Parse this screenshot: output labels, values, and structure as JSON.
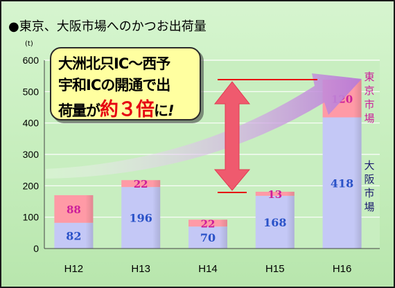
{
  "title": "●東京、大阪市場へのかつお出荷量",
  "unit": "(t)",
  "callout": {
    "line1": "大洲北只IC～西予",
    "line2": "宇和ICの開通で出",
    "line3_a": "荷量が",
    "line3_b": "約３倍",
    "line3_c": "に",
    "line3_d": "!"
  },
  "legend_labels": {
    "tokyo": "東京市場",
    "osaka": "大阪市場"
  },
  "colors": {
    "tokyo_fill": "#ff9aa6",
    "osaka_fill": "#c4c8f6",
    "tokyo_label": "#cc1f9a",
    "osaka_label": "#2a52c8",
    "accent_red": "#e60012",
    "arrow_purple": "#b87ad6"
  },
  "chart_data": {
    "type": "bar",
    "stacked": true,
    "categories": [
      "H12",
      "H13",
      "H14",
      "H15",
      "H16"
    ],
    "series": [
      {
        "name": "大阪市場",
        "values": [
          82,
          196,
          70,
          168,
          418
        ]
      },
      {
        "name": "東京市場",
        "values": [
          88,
          22,
          22,
          13,
          120
        ]
      }
    ],
    "ylim": [
      0,
      600
    ],
    "yticks": [
      "0",
      "100",
      "200",
      "300",
      "400",
      "500",
      "600"
    ],
    "grid": true
  }
}
